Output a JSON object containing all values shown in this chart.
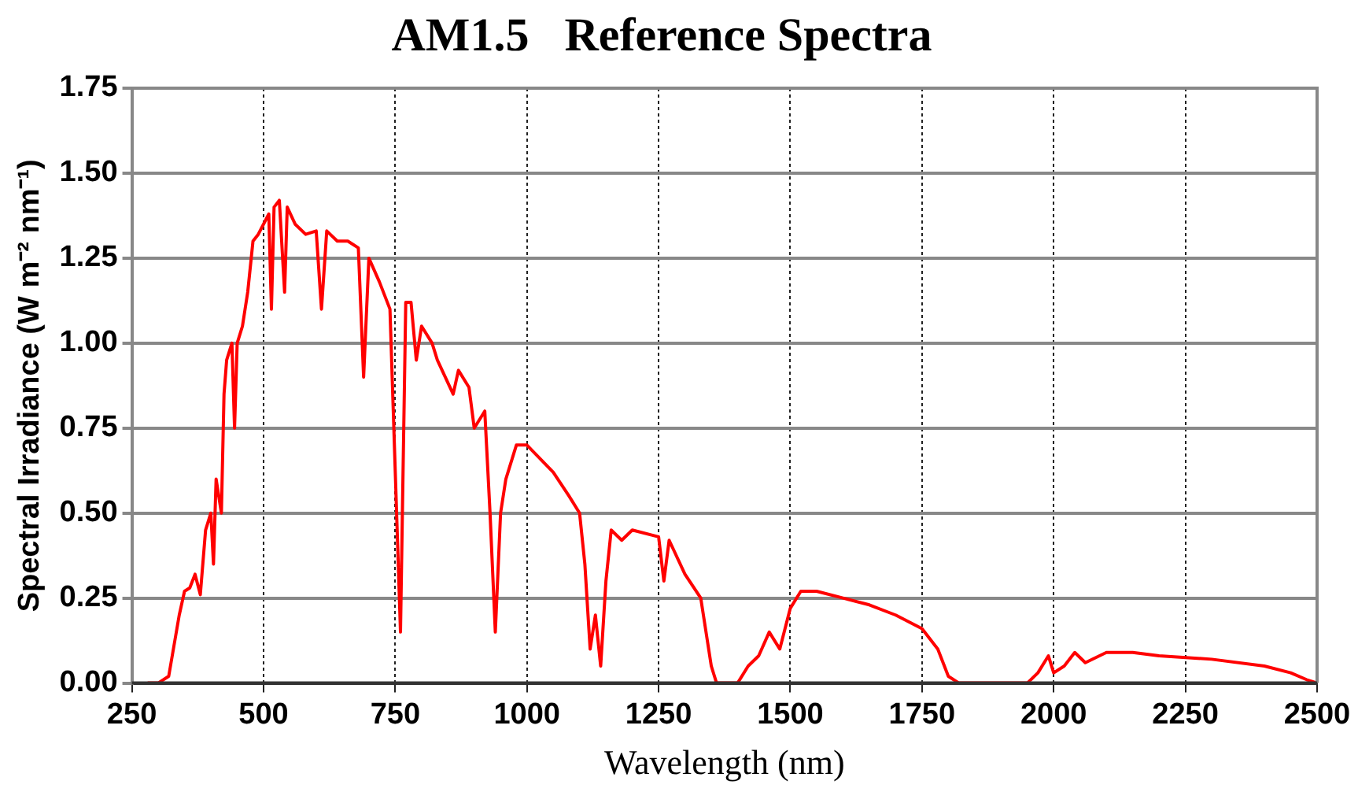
{
  "chart_data": {
    "type": "line",
    "title": "AM1.5   Reference Spectra",
    "xlabel": "Wavelength (nm)",
    "ylabel": "Spectral Irradiance (W m⁻² nm⁻¹)",
    "x": [
      280,
      300,
      320,
      340,
      350,
      360,
      370,
      380,
      390,
      400,
      405,
      410,
      420,
      425,
      430,
      440,
      445,
      450,
      460,
      470,
      480,
      490,
      500,
      510,
      515,
      520,
      530,
      540,
      545,
      560,
      580,
      600,
      610,
      620,
      640,
      660,
      680,
      690,
      700,
      720,
      740,
      760,
      770,
      780,
      790,
      800,
      820,
      830,
      860,
      870,
      890,
      900,
      920,
      930,
      940,
      950,
      960,
      980,
      1000,
      1050,
      1080,
      1100,
      1110,
      1120,
      1130,
      1140,
      1150,
      1160,
      1180,
      1200,
      1250,
      1260,
      1270,
      1300,
      1330,
      1350,
      1360,
      1400,
      1420,
      1440,
      1460,
      1480,
      1500,
      1520,
      1550,
      1600,
      1650,
      1700,
      1750,
      1780,
      1800,
      1820,
      1950,
      1970,
      1990,
      2000,
      2020,
      2040,
      2060,
      2100,
      2150,
      2200,
      2300,
      2400,
      2450,
      2480,
      2500
    ],
    "series": [
      {
        "color": "#ff0000",
        "values": [
          0,
          0,
          0.02,
          0.2,
          0.27,
          0.28,
          0.32,
          0.26,
          0.45,
          0.5,
          0.35,
          0.6,
          0.5,
          0.85,
          0.95,
          1.0,
          0.75,
          1.0,
          1.05,
          1.15,
          1.3,
          1.32,
          1.35,
          1.38,
          1.1,
          1.4,
          1.42,
          1.15,
          1.4,
          1.35,
          1.32,
          1.33,
          1.1,
          1.33,
          1.3,
          1.3,
          1.28,
          0.9,
          1.25,
          1.18,
          1.1,
          0.15,
          1.12,
          1.12,
          0.95,
          1.05,
          1.0,
          0.95,
          0.85,
          0.92,
          0.87,
          0.75,
          0.8,
          0.5,
          0.15,
          0.5,
          0.6,
          0.7,
          0.7,
          0.62,
          0.55,
          0.5,
          0.35,
          0.1,
          0.2,
          0.05,
          0.3,
          0.45,
          0.42,
          0.45,
          0.43,
          0.3,
          0.42,
          0.32,
          0.25,
          0.05,
          0,
          0,
          0.05,
          0.08,
          0.15,
          0.1,
          0.22,
          0.27,
          0.27,
          0.25,
          0.23,
          0.2,
          0.16,
          0.1,
          0.02,
          0,
          0,
          0.03,
          0.08,
          0.03,
          0.05,
          0.09,
          0.06,
          0.09,
          0.09,
          0.08,
          0.07,
          0.05,
          0.03,
          0.01,
          0
        ]
      }
    ],
    "xlim": [
      250,
      2500
    ],
    "xticks": [
      250,
      500,
      750,
      1000,
      1250,
      1500,
      1750,
      2000,
      2250,
      2500
    ],
    "ylim": [
      0,
      1.75
    ],
    "yticks": [
      {
        "value": 0,
        "label": "0.00"
      },
      {
        "value": 0.25,
        "label": "0.25"
      },
      {
        "value": 0.5,
        "label": "0.50"
      },
      {
        "value": 0.75,
        "label": "0.75"
      },
      {
        "value": 1,
        "label": "1.00"
      },
      {
        "value": 1.25,
        "label": "1.25"
      },
      {
        "value": 1.5,
        "label": "1.50"
      },
      {
        "value": 1.75,
        "label": "1.75"
      }
    ],
    "grid": true,
    "legend": false,
    "marker": "none",
    "line_style": "solid"
  }
}
